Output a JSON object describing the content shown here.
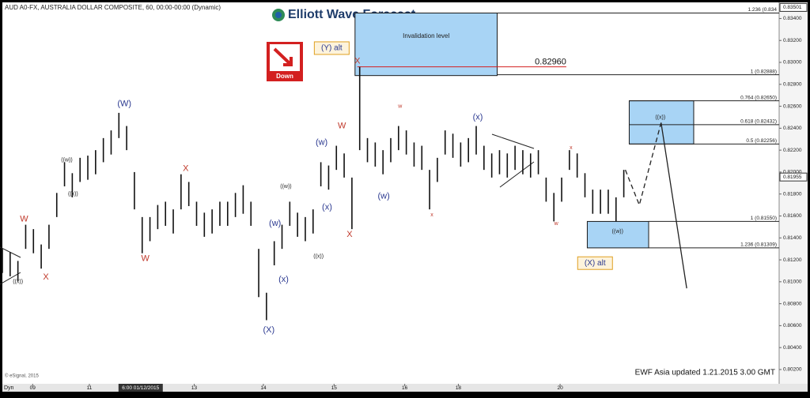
{
  "chart_data": {
    "type": "range-bar",
    "header": "AUD A0-FX, AUSTRALIA DOLLAR COMPOSITE, 60, 00:00-00:00 (Dynamic)",
    "logo": "Elliott Wave Forecast",
    "badge": "Down",
    "copyright": "© eSignal, 2015",
    "footer": "EWF Asia  updated  1.21.2015  3.00 GMT",
    "x_axis_prefix": "Dyn",
    "xlim": [
      0,
      100
    ],
    "ylim": [
      0.8007,
      0.8354
    ],
    "xticks": [
      {
        "value": 3.9,
        "label": "09"
      },
      {
        "value": 11.2,
        "label": "11"
      },
      {
        "value": 17.8,
        "label": "6:00 01/12/2015"
      },
      {
        "value": 24.7,
        "label": "13"
      },
      {
        "value": 33.6,
        "label": "14"
      },
      {
        "value": 42.7,
        "label": "15"
      },
      {
        "value": 51.8,
        "label": "16"
      },
      {
        "value": 58.7,
        "label": "18"
      },
      {
        "value": 71.8,
        "label": "20"
      }
    ],
    "yticks": [
      {
        "value": 0.802,
        "label": "0.80200"
      },
      {
        "value": 0.804,
        "label": "0.80400"
      },
      {
        "value": 0.806,
        "label": "0.80600"
      },
      {
        "value": 0.808,
        "label": "0.80800"
      },
      {
        "value": 0.81,
        "label": "0.81000"
      },
      {
        "value": 0.812,
        "label": "0.81200"
      },
      {
        "value": 0.814,
        "label": "0.81400"
      },
      {
        "value": 0.816,
        "label": "0.81600"
      },
      {
        "value": 0.818,
        "label": "0.81800"
      },
      {
        "value": 0.82,
        "label": "0.82000"
      },
      {
        "value": 0.822,
        "label": "0.82200"
      },
      {
        "value": 0.824,
        "label": "0.82400"
      },
      {
        "value": 0.826,
        "label": "0.82600"
      },
      {
        "value": 0.828,
        "label": "0.82800"
      },
      {
        "value": 0.83,
        "label": "0.83000"
      },
      {
        "value": 0.832,
        "label": "0.83200"
      },
      {
        "value": 0.834,
        "label": "0.83400"
      }
    ],
    "price_labels": [
      {
        "value": 0.83501,
        "label": "0.83501"
      },
      {
        "value": 0.81955,
        "label": "0.81955"
      }
    ],
    "color": "#111111",
    "x": [
      0,
      1,
      2,
      3,
      4,
      5,
      6,
      7,
      8,
      9,
      10,
      11,
      12,
      13,
      14,
      15,
      16,
      17,
      18,
      19,
      20,
      21,
      22,
      23,
      24,
      25,
      26,
      27,
      28,
      29,
      30,
      31,
      32,
      33,
      34,
      35,
      36,
      37,
      38,
      39,
      40,
      41,
      42,
      43,
      44,
      45,
      46,
      47,
      48,
      49,
      50,
      51,
      52,
      53,
      54,
      55,
      56,
      57,
      58,
      59,
      60,
      61,
      62,
      63,
      64,
      65,
      66,
      67,
      68,
      69,
      70,
      71,
      72,
      73,
      74,
      75,
      76,
      77,
      78,
      79,
      80
    ],
    "high": [
      0.813,
      0.8127,
      0.8119,
      0.8152,
      0.8148,
      0.8134,
      0.8152,
      0.8181,
      0.8209,
      0.8199,
      0.8213,
      0.8215,
      0.822,
      0.8231,
      0.8238,
      0.8254,
      0.8242,
      0.82,
      0.8159,
      0.8159,
      0.817,
      0.8173,
      0.8166,
      0.8198,
      0.8191,
      0.8173,
      0.8163,
      0.8166,
      0.8173,
      0.8173,
      0.8181,
      0.8188,
      0.8173,
      0.813,
      0.809,
      0.8137,
      0.8152,
      0.8173,
      0.8163,
      0.8159,
      0.8166,
      0.8209,
      0.8206,
      0.8224,
      0.8217,
      0.8195,
      0.8296,
      0.8231,
      0.8227,
      0.822,
      0.8231,
      0.8242,
      0.8238,
      0.8227,
      0.8224,
      0.8202,
      0.8213,
      0.8238,
      0.8235,
      0.8227,
      0.8231,
      0.8242,
      0.8224,
      0.8217,
      0.822,
      0.8217,
      0.8224,
      0.822,
      0.8217,
      0.822,
      0.8195,
      0.8181,
      0.8195,
      0.822,
      0.8217,
      0.8199,
      0.8184,
      0.8184,
      0.8184,
      0.8177,
      0.8202
    ],
    "low": [
      0.8108,
      0.8105,
      0.8101,
      0.813,
      0.8126,
      0.8112,
      0.813,
      0.8159,
      0.8187,
      0.8177,
      0.8191,
      0.8193,
      0.8198,
      0.8209,
      0.8216,
      0.8231,
      0.822,
      0.8166,
      0.8126,
      0.8137,
      0.8148,
      0.8151,
      0.8144,
      0.8166,
      0.8169,
      0.8151,
      0.8141,
      0.8144,
      0.8151,
      0.8151,
      0.8159,
      0.8162,
      0.8151,
      0.8086,
      0.8065,
      0.8115,
      0.813,
      0.8151,
      0.8141,
      0.8137,
      0.8144,
      0.8187,
      0.8184,
      0.8202,
      0.8195,
      0.8148,
      0.822,
      0.8209,
      0.8205,
      0.8198,
      0.8209,
      0.822,
      0.8216,
      0.8205,
      0.8202,
      0.8166,
      0.8191,
      0.8216,
      0.8213,
      0.8205,
      0.8209,
      0.8216,
      0.8202,
      0.8195,
      0.8198,
      0.8195,
      0.8202,
      0.8198,
      0.8195,
      0.8198,
      0.8173,
      0.8155,
      0.8173,
      0.8202,
      0.8195,
      0.8177,
      0.8162,
      0.8162,
      0.8162,
      0.8155,
      0.8177
    ],
    "fib_levels": [
      {
        "value": 0.8345,
        "label": "1.236 (0.834",
        "from": 63.7
      },
      {
        "value": 0.82888,
        "label": "1 (0.82888)",
        "from": 63.7
      },
      {
        "value": 0.8265,
        "label": "0.764 (0.82650)",
        "from": 80.7
      },
      {
        "value": 0.82432,
        "label": "0.618 (0.82432)",
        "from": 80.7
      },
      {
        "value": 0.82256,
        "label": "0.5 (0.82256)",
        "from": 80.7
      },
      {
        "value": 0.8155,
        "label": "1 (0.81550)",
        "from": 83.2
      },
      {
        "value": 0.81309,
        "label": "1.236 (0.81309)",
        "from": 83.2
      }
    ],
    "invalidation": {
      "value": 0.8296,
      "label": "0.82960",
      "from": 45.7,
      "to": 72.6
    },
    "zones": [
      {
        "x": [
          45.4,
          63.7
        ],
        "y": [
          0.8288,
          0.8345
        ],
        "label": "Invalidation level"
      },
      {
        "x": [
          80.7,
          89.0
        ],
        "y": [
          0.82256,
          0.8265
        ]
      },
      {
        "x": [
          75.3,
          83.2
        ],
        "y": [
          0.81309,
          0.8155
        ]
      }
    ],
    "projection_dashed": {
      "x": [
        80.2,
        82.0,
        84.8
      ],
      "y": [
        0.8202,
        0.817,
        0.8245
      ]
    },
    "projection_solid": {
      "x": [
        84.8,
        88.1
      ],
      "y": [
        0.8245,
        0.8094
      ]
    },
    "annotations": [
      {
        "text": "W",
        "x": 2.8,
        "y": 0.8157,
        "color": "#c0392b"
      },
      {
        "text": "((x))",
        "x": 2.0,
        "y": 0.81,
        "color": "#222222"
      },
      {
        "text": "X",
        "x": 5.6,
        "y": 0.8104,
        "color": "#c0392b"
      },
      {
        "text": "((w))",
        "x": 8.3,
        "y": 0.8211,
        "color": "#222222"
      },
      {
        "text": "((x))",
        "x": 9.1,
        "y": 0.818,
        "color": "#222222"
      },
      {
        "text": "(W)",
        "x": 15.7,
        "y": 0.8262,
        "color": "#2b3990"
      },
      {
        "text": "X",
        "x": 23.6,
        "y": 0.8203,
        "color": "#c0392b"
      },
      {
        "text": "W",
        "x": 18.4,
        "y": 0.8121,
        "color": "#c0392b"
      },
      {
        "text": "((w))",
        "x": 36.5,
        "y": 0.8187,
        "color": "#222222"
      },
      {
        "text": "(w)",
        "x": 35.1,
        "y": 0.8153,
        "color": "#2b3990"
      },
      {
        "text": "(x)",
        "x": 36.2,
        "y": 0.8102,
        "color": "#2b3990"
      },
      {
        "text": "((x))",
        "x": 40.7,
        "y": 0.8123,
        "color": "#222222"
      },
      {
        "text": "(X)",
        "x": 34.3,
        "y": 0.8056,
        "color": "#2b3990"
      },
      {
        "text": "(w)",
        "x": 41.1,
        "y": 0.8227,
        "color": "#2b3990"
      },
      {
        "text": "(x)",
        "x": 41.8,
        "y": 0.8168,
        "color": "#2b3990"
      },
      {
        "text": "W",
        "x": 43.7,
        "y": 0.8242,
        "color": "#c0392b"
      },
      {
        "text": "X",
        "x": 44.7,
        "y": 0.8143,
        "color": "#c0392b"
      },
      {
        "text": "X",
        "x": 45.7,
        "y": 0.8301,
        "color": "#c0392b"
      },
      {
        "text": "w",
        "x": 51.2,
        "y": 0.826,
        "color": "#c0392b"
      },
      {
        "text": "(w)",
        "x": 49.1,
        "y": 0.8178,
        "color": "#2b3990"
      },
      {
        "text": "x",
        "x": 55.3,
        "y": 0.8161,
        "color": "#c0392b"
      },
      {
        "text": "(x)",
        "x": 61.2,
        "y": 0.825,
        "color": "#2b3990"
      },
      {
        "text": "w",
        "x": 71.3,
        "y": 0.8153,
        "color": "#c0392b"
      },
      {
        "text": "x",
        "x": 73.2,
        "y": 0.8222,
        "color": "#c0392b"
      },
      {
        "text": "((w))",
        "x": 79.2,
        "y": 0.8146,
        "color": "#222222"
      },
      {
        "text": "((x))",
        "x": 84.7,
        "y": 0.825,
        "color": "#222222"
      }
    ],
    "alt_labels": [
      {
        "text": "(Y) alt",
        "x": 42.4,
        "y": 0.8313
      },
      {
        "text": "(X) alt",
        "x": 76.3,
        "y": 0.8117
      }
    ]
  }
}
